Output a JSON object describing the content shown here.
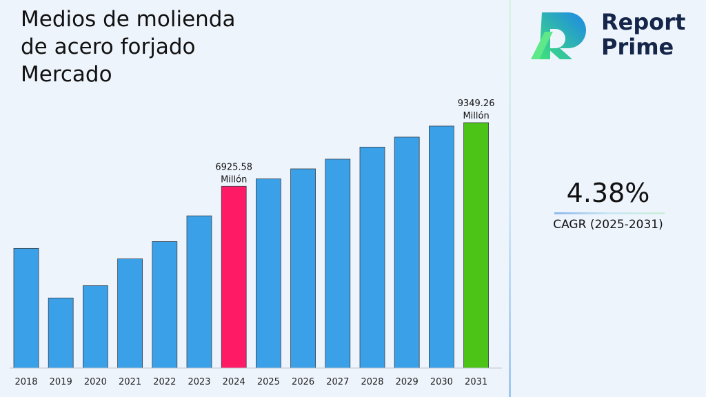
{
  "title_lines": [
    "Medios de molienda",
    "de acero forjado",
    "Mercado"
  ],
  "logo": {
    "line1": "Report",
    "line2": "Prime"
  },
  "cagr": {
    "value": "4.38%",
    "label": "CAGR (2025-2031)"
  },
  "colors": {
    "default": "#3aa0e8",
    "highlight_2024": "#ff1a66",
    "highlight_2031": "#4cc417"
  },
  "chart_data": {
    "type": "bar",
    "categories": [
      "2018",
      "2019",
      "2020",
      "2021",
      "2022",
      "2023",
      "2024",
      "2025",
      "2026",
      "2027",
      "2028",
      "2029",
      "2030",
      "2031"
    ],
    "values": [
      4560,
      2670,
      3140,
      4160,
      4820,
      5800,
      6925.58,
      7210,
      7590,
      7960,
      8420,
      8800,
      9220,
      9349.26
    ],
    "data_labels": [
      {
        "index": 6,
        "value": "6925.58",
        "unit": "Millón"
      },
      {
        "index": 13,
        "value": "9349.26",
        "unit": "Millón"
      }
    ],
    "highlight": {
      "2024": "#ff1a66",
      "2031": "#4cc417"
    },
    "title": "Medios de molienda de acero forjado Mercado",
    "xlabel": "",
    "ylabel": "",
    "grid": false
  }
}
